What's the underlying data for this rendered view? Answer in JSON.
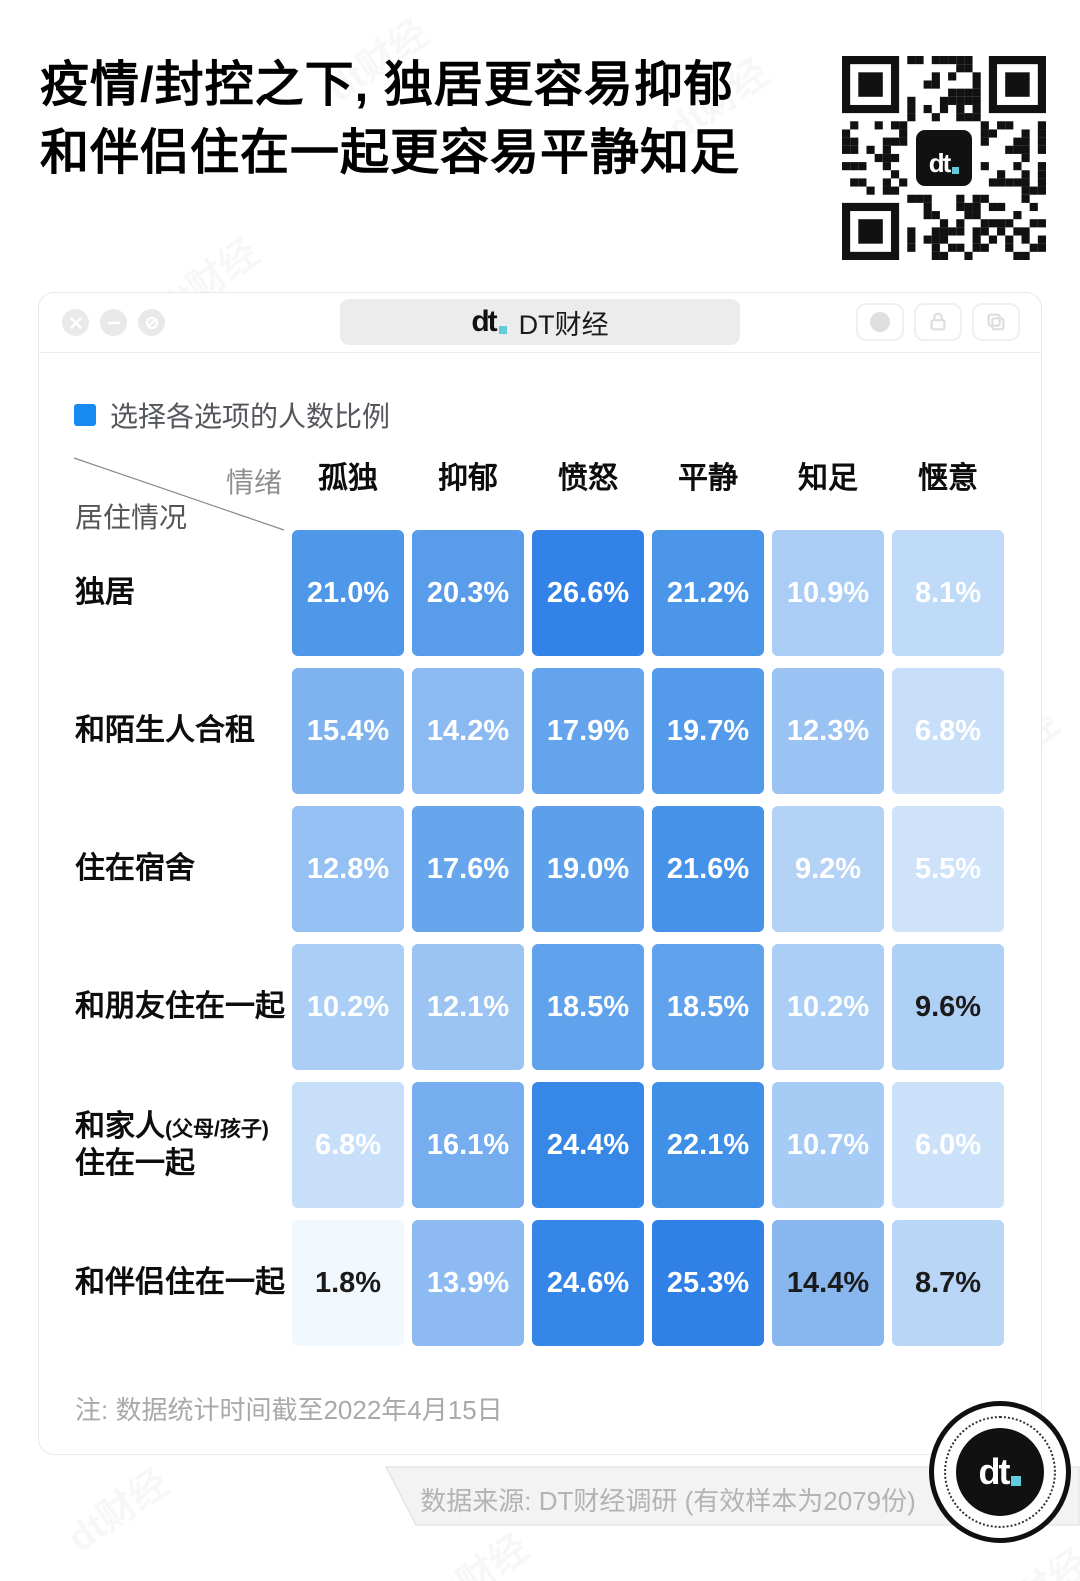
{
  "watermark": "dt财经",
  "title": {
    "line1": "疫情/封控之下, 独居更容易抑郁",
    "line2": "和伴侣住在一起更容易平静知足"
  },
  "browser": {
    "tab": {
      "logo": "dt",
      "title": "DT财经"
    },
    "window_controls": [
      "close",
      "minimize",
      "block"
    ],
    "action_buttons": [
      "record",
      "lock",
      "copy"
    ]
  },
  "legend": {
    "swatch_color": "#1789F2",
    "label": "选择各选项的人数比例"
  },
  "matrix": {
    "axis": {
      "top": "情绪",
      "left": "居住情况"
    },
    "columns": [
      "孤独",
      "抑郁",
      "愤怒",
      "平静",
      "知足",
      "惬意"
    ],
    "rows": [
      {
        "label": "独居",
        "cells": [
          {
            "value": "21.0%",
            "bg": "#4E97E9",
            "fg": "#FFFFFF"
          },
          {
            "value": "20.3%",
            "bg": "#589CEA",
            "fg": "#FFFFFF"
          },
          {
            "value": "26.6%",
            "bg": "#3282E7",
            "fg": "#FFFFFF"
          },
          {
            "value": "21.2%",
            "bg": "#4C96E9",
            "fg": "#FFFFFF"
          },
          {
            "value": "10.9%",
            "bg": "#A9CDF5",
            "fg": "#FFFFFF"
          },
          {
            "value": "8.1%",
            "bg": "#BFDBF8",
            "fg": "#FFFFFF"
          }
        ]
      },
      {
        "label": "和陌生人合租",
        "cells": [
          {
            "value": "15.4%",
            "bg": "#7FB3F0",
            "fg": "#FFFFFF"
          },
          {
            "value": "14.2%",
            "bg": "#8ABAF1",
            "fg": "#FFFFFF"
          },
          {
            "value": "17.9%",
            "bg": "#64A4EC",
            "fg": "#FFFFFF"
          },
          {
            "value": "19.7%",
            "bg": "#539AEA",
            "fg": "#FFFFFF"
          },
          {
            "value": "12.3%",
            "bg": "#9AC3F3",
            "fg": "#FFFFFF"
          },
          {
            "value": "6.8%",
            "bg": "#C8DFF9",
            "fg": "#FFFFFF"
          }
        ]
      },
      {
        "label": "住在宿舍",
        "cells": [
          {
            "value": "12.8%",
            "bg": "#95C0F3",
            "fg": "#FFFFFF"
          },
          {
            "value": "17.6%",
            "bg": "#67A6EC",
            "fg": "#FFFFFF"
          },
          {
            "value": "19.0%",
            "bg": "#5CA0EB",
            "fg": "#FFFFFF"
          },
          {
            "value": "21.6%",
            "bg": "#4592E8",
            "fg": "#FFFFFF"
          },
          {
            "value": "9.2%",
            "bg": "#B3D2F6",
            "fg": "#FFFFFF"
          },
          {
            "value": "5.5%",
            "bg": "#CEE3FA",
            "fg": "#FFFFFF"
          }
        ]
      },
      {
        "label": "和朋友住在一起",
        "cells": [
          {
            "value": "10.2%",
            "bg": "#AACEF5",
            "fg": "#FFFFFF"
          },
          {
            "value": "12.1%",
            "bg": "#9CC4F3",
            "fg": "#FFFFFF"
          },
          {
            "value": "18.5%",
            "bg": "#60A2EB",
            "fg": "#FFFFFF"
          },
          {
            "value": "18.5%",
            "bg": "#60A2EB",
            "fg": "#FFFFFF"
          },
          {
            "value": "10.2%",
            "bg": "#AACEF5",
            "fg": "#FFFFFF"
          },
          {
            "value": "9.6%",
            "bg": "#AFD0F5",
            "fg": "#1B1B1B"
          }
        ]
      },
      {
        "label": "和家人",
        "label_small": "(父母/孩子)",
        "label_line2": "住在一起",
        "cells": [
          {
            "value": "6.8%",
            "bg": "#C8DFF9",
            "fg": "#FFFFFF"
          },
          {
            "value": "16.1%",
            "bg": "#75ADEE",
            "fg": "#FFFFFF"
          },
          {
            "value": "24.4%",
            "bg": "#3787E7",
            "fg": "#FFFFFF"
          },
          {
            "value": "22.1%",
            "bg": "#4190E8",
            "fg": "#FFFFFF"
          },
          {
            "value": "10.7%",
            "bg": "#A6CBF4",
            "fg": "#FFFFFF"
          },
          {
            "value": "6.0%",
            "bg": "#CBE1FA",
            "fg": "#FFFFFF"
          }
        ]
      },
      {
        "label": "和伴侣住在一起",
        "cells": [
          {
            "value": "1.8%",
            "bg": "#F1F8FE",
            "fg": "#1B1B1B"
          },
          {
            "value": "13.9%",
            "bg": "#8DBBF1",
            "fg": "#FFFFFF"
          },
          {
            "value": "24.6%",
            "bg": "#3686E7",
            "fg": "#FFFFFF"
          },
          {
            "value": "25.3%",
            "bg": "#3080E6",
            "fg": "#FFFFFF"
          },
          {
            "value": "14.4%",
            "bg": "#88B7F0",
            "fg": "#1B1B1B"
          },
          {
            "value": "8.7%",
            "bg": "#B9D6F7",
            "fg": "#1B1B1B"
          }
        ]
      }
    ]
  },
  "note": "注: 数据统计时间截至2022年4月15日",
  "source": "数据来源: DT财经调研 (有效样本为2079份)",
  "footer_logo": {
    "text": "dt"
  },
  "accent_colors": {
    "legend_blue": "#1789F2",
    "logo_cyan": "#62CBDC"
  },
  "chart_data": {
    "type": "heatmap",
    "title": "疫情/封控之下, 独居更容易抑郁 和伴侣住在一起更容易平静知足",
    "legend": "选择各选项的人数比例",
    "x_axis_label": "情绪",
    "y_axis_label": "居住情况",
    "x_categories": [
      "孤独",
      "抑郁",
      "愤怒",
      "平静",
      "知足",
      "惬意"
    ],
    "y_categories": [
      "独居",
      "和陌生人合租",
      "住在宿舍",
      "和朋友住在一起",
      "和家人(父母/孩子)住在一起",
      "和伴侣住在一起"
    ],
    "values_percent": [
      [
        21.0,
        20.3,
        26.6,
        21.2,
        10.9,
        8.1
      ],
      [
        15.4,
        14.2,
        17.9,
        19.7,
        12.3,
        6.8
      ],
      [
        12.8,
        17.6,
        19.0,
        21.6,
        9.2,
        5.5
      ],
      [
        10.2,
        12.1,
        18.5,
        18.5,
        10.2,
        9.6
      ],
      [
        6.8,
        16.1,
        24.4,
        22.1,
        10.7,
        6.0
      ],
      [
        1.8,
        13.9,
        24.6,
        25.3,
        14.4,
        8.7
      ]
    ],
    "color_scale": {
      "low": "#F1F8FE",
      "high": "#3080E6"
    },
    "note": "注: 数据统计时间截至2022年4月15日",
    "source": "数据来源: DT财经调研 (有效样本为2079份)"
  }
}
